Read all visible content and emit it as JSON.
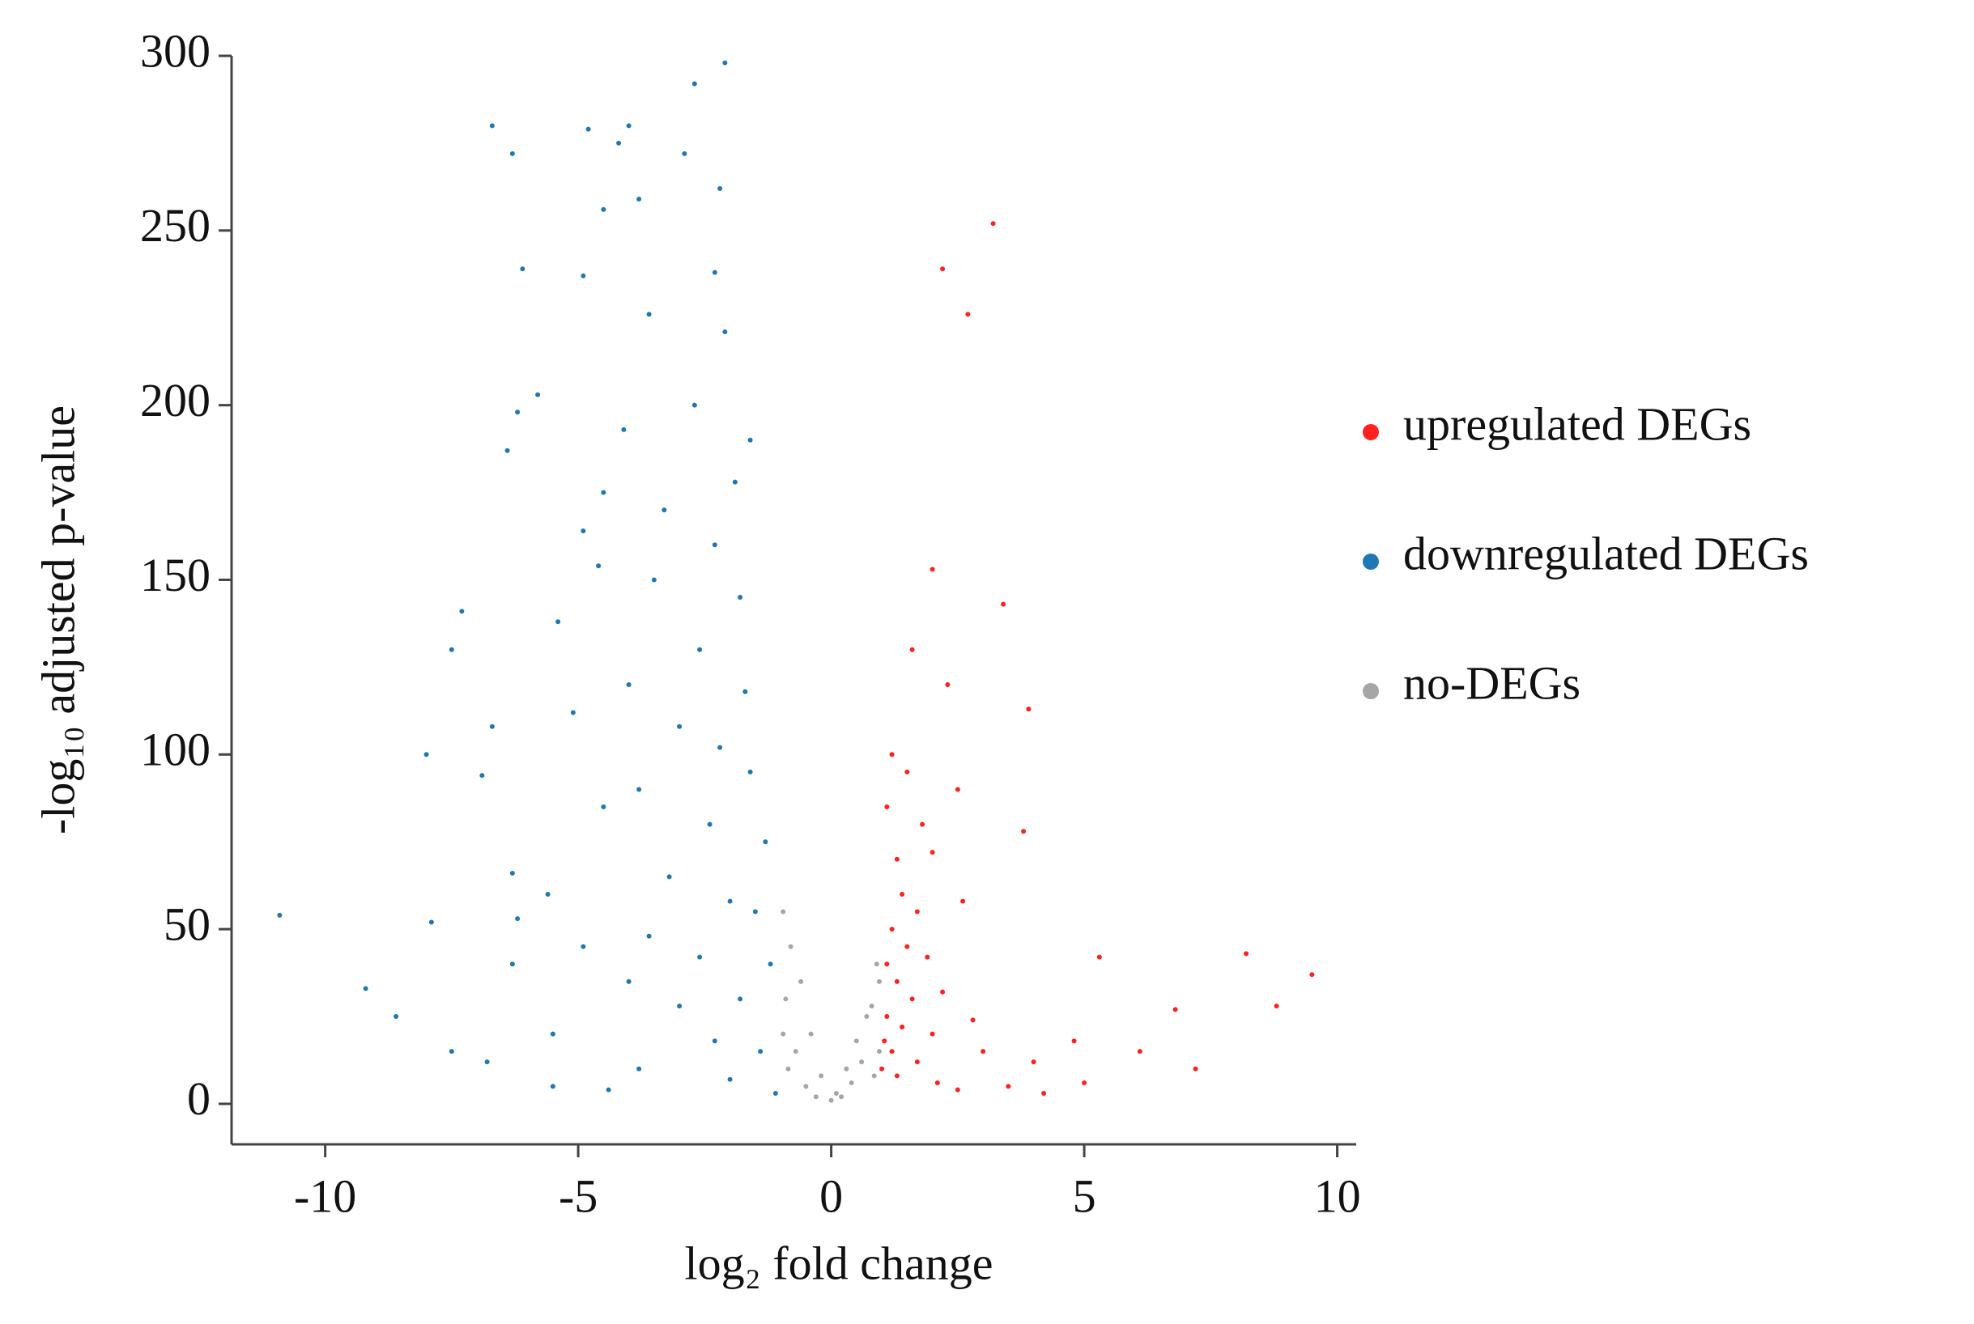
{
  "chart_data": {
    "type": "scatter",
    "x_label": "log₂ fold change",
    "y_label": "-log₁₀ adjusted p-value",
    "xlim": [
      -11.85,
      10.375
    ],
    "ylim": [
      -11.6,
      300
    ],
    "xticks": [
      -10,
      -5,
      0,
      5,
      10
    ],
    "yticks": [
      0,
      50,
      100,
      150,
      200,
      250,
      300
    ],
    "legend": "right",
    "series": [
      {
        "name": "upregulated DEGs",
        "color": "#ff2020",
        "x": [
          3.2,
          2.2,
          2.7,
          2.0,
          3.4,
          3.9,
          1.6,
          2.3,
          1.2,
          1.5,
          2.5,
          1.1,
          1.8,
          3.8,
          1.3,
          2.0,
          1.4,
          1.7,
          2.6,
          1.2,
          1.5,
          1.1,
          1.9,
          1.3,
          1.6,
          2.2,
          1.1,
          1.4,
          2.0,
          2.8,
          1.2,
          1.7,
          3.0,
          1.3,
          2.1,
          3.5,
          4.2,
          4.8,
          5.3,
          6.1,
          6.8,
          7.2,
          8.2,
          8.8,
          9.5,
          4.0,
          5.0,
          2.5,
          1.0,
          1.05
        ],
        "values": [
          252,
          239,
          226,
          153,
          143,
          113,
          130,
          120,
          100,
          95,
          90,
          85,
          80,
          78,
          70,
          72,
          60,
          55,
          58,
          50,
          45,
          40,
          42,
          35,
          30,
          32,
          25,
          22,
          20,
          24,
          15,
          12,
          15,
          8,
          6,
          5,
          3,
          18,
          42,
          15,
          27,
          10,
          43,
          28,
          37,
          12,
          6,
          4,
          10,
          18
        ]
      },
      {
        "name": "downregulated DEGs",
        "color": "#1f78b4",
        "x": [
          -2.1,
          -2.7,
          -6.7,
          -4.0,
          -4.8,
          -4.2,
          -6.3,
          -2.9,
          -2.2,
          -3.8,
          -4.5,
          -6.1,
          -4.9,
          -2.3,
          -3.6,
          -2.1,
          -5.8,
          -2.7,
          -6.2,
          -4.1,
          -1.6,
          -6.4,
          -4.5,
          -1.9,
          -3.3,
          -4.9,
          -2.3,
          -4.6,
          -3.5,
          -1.8,
          -7.3,
          -5.4,
          -2.6,
          -7.5,
          -4.0,
          -1.7,
          -5.1,
          -3.0,
          -6.7,
          -2.2,
          -8.0,
          -6.9,
          -1.6,
          -3.8,
          -4.5,
          -2.4,
          -1.3,
          -6.3,
          -3.2,
          -5.6,
          -2.0,
          -6.2,
          -7.9,
          -1.5,
          -10.9,
          -3.6,
          -4.9,
          -2.6,
          -1.2,
          -4.0,
          -6.3,
          -1.8,
          -3.0,
          -9.2,
          -8.6,
          -5.5,
          -2.3,
          -1.4,
          -7.5,
          -3.8,
          -6.8,
          -2.0,
          -4.4,
          -1.1,
          -5.5
        ],
        "values": [
          298,
          292,
          280,
          280,
          279,
          275,
          272,
          272,
          262,
          259,
          256,
          239,
          237,
          238,
          226,
          221,
          203,
          200,
          198,
          193,
          190,
          187,
          175,
          178,
          170,
          164,
          160,
          154,
          150,
          145,
          141,
          138,
          130,
          130,
          120,
          118,
          112,
          108,
          108,
          102,
          100,
          94,
          95,
          90,
          85,
          80,
          75,
          66,
          65,
          60,
          58,
          53,
          52,
          55,
          54,
          48,
          45,
          42,
          40,
          35,
          40,
          30,
          28,
          33,
          25,
          20,
          18,
          15,
          15,
          10,
          12,
          7,
          4,
          3,
          5
        ]
      },
      {
        "name": "no-DEGs",
        "color": "#a6a6a6",
        "x": [
          -0.95,
          -0.8,
          -0.6,
          -0.9,
          -0.4,
          -0.7,
          -0.2,
          -0.5,
          0,
          0.1,
          0.3,
          0.5,
          0.7,
          0.9,
          0.95,
          0.8,
          0.6,
          0.4,
          -0.3,
          0.2,
          -0.85,
          0.85,
          -0.95,
          0.95
        ],
        "values": [
          55,
          45,
          35,
          30,
          20,
          15,
          8,
          5,
          1,
          3,
          10,
          18,
          25,
          40,
          35,
          28,
          12,
          6,
          2,
          2,
          10,
          8,
          20,
          15
        ]
      }
    ]
  }
}
